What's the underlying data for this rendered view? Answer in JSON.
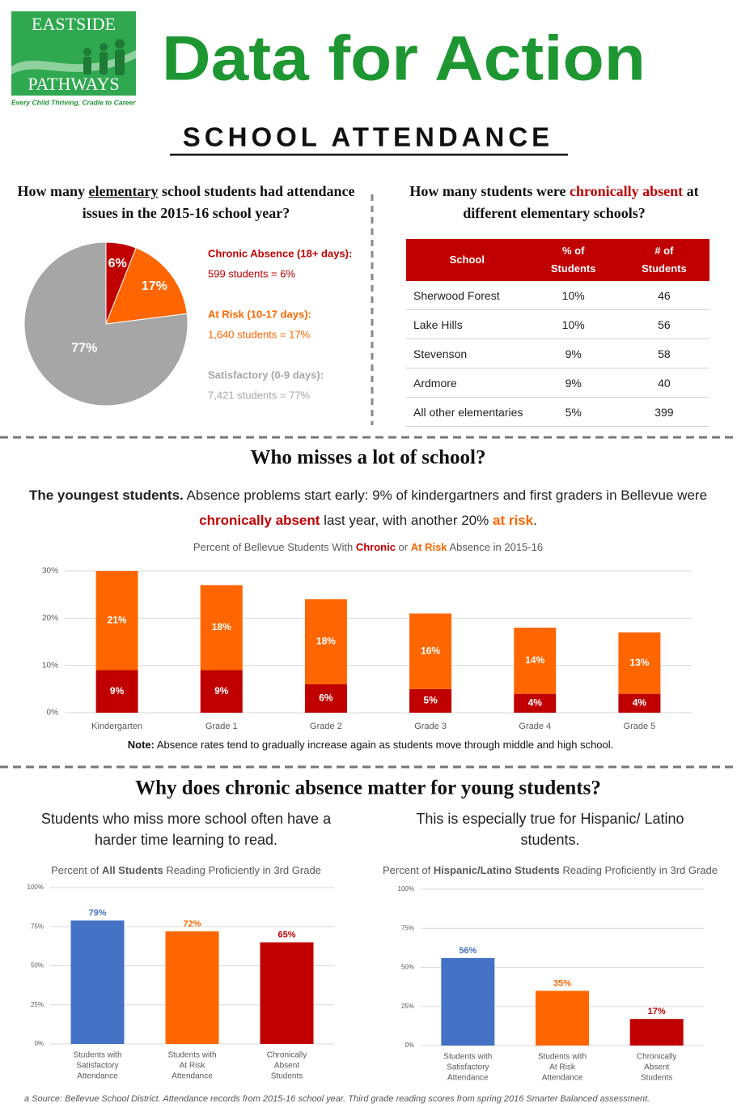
{
  "header": {
    "logo_top": "EASTSIDE",
    "logo_bottom": "PATHWAYS",
    "tagline": "Every Child Thriving, Cradle to Career",
    "title": "Data for Action",
    "subtitle": "SCHOOL ATTENDANCE"
  },
  "section1": {
    "question": [
      "How many ",
      "elementary",
      " school students had attendance issues in the 2015-16 school year?"
    ]
  },
  "table": {
    "question": [
      "How many students were ",
      "chronically absent",
      " at different elementary schools?"
    ],
    "columns": [
      "School",
      "% of Students",
      "# of Students"
    ],
    "rows": [
      [
        "Sherwood Forest",
        "10%",
        "46"
      ],
      [
        "Lake Hills",
        "10%",
        "56"
      ],
      [
        "Stevenson",
        "9%",
        "58"
      ],
      [
        "Ardmore",
        "9%",
        "40"
      ],
      [
        "All other elementaries",
        "5%",
        "399"
      ]
    ]
  },
  "section2": {
    "heading": "Who misses a lot of school?",
    "text": [
      "The youngest students.",
      " Absence problems start early: 9% of kindergartners and first graders in Bellevue were ",
      "chronically absent",
      " last year, with another 20% ",
      "at risk",
      "."
    ],
    "note": [
      "Note:",
      " Absence rates tend to gradually increase again as students move through middle and high school."
    ]
  },
  "section3": {
    "heading": "Why does chronic absence matter for young students?",
    "left_text": "Students who miss more school often have a harder time learning to read.",
    "right_text": "This is especially true for Hispanic/ Latino students."
  },
  "chart_data": [
    {
      "type": "pie",
      "categories": [
        "Chronic Absence (18+ days):",
        "At Risk (10-17 days):",
        "Satisfactory (0-9 days):"
      ],
      "values": [
        6,
        17,
        77
      ],
      "value_labels": [
        "6%",
        "17%",
        "77%"
      ],
      "details": [
        "599 students = 6%",
        "1,640 students = 17%",
        "7,421 students = 77%"
      ],
      "colors": [
        "#c00000",
        "#ff6600",
        "#a6a6a6"
      ]
    },
    {
      "type": "stacked_bar",
      "title": [
        "Percent of Bellevue Students With ",
        "Chronic",
        " or ",
        "At Risk",
        " Absence in 2015-16"
      ],
      "categories": [
        "Kindergarten",
        "Grade 1",
        "Grade 2",
        "Grade 3",
        "Grade 4",
        "Grade 5"
      ],
      "series": [
        {
          "color": "#c00000",
          "values": [
            9,
            9,
            6,
            5,
            4,
            4
          ],
          "value_labels": [
            "9%",
            "9%",
            "6%",
            "5%",
            "4%",
            "4%"
          ]
        },
        {
          "color": "#ff6600",
          "values": [
            21,
            18,
            18,
            16,
            14,
            13
          ],
          "value_labels": [
            "21%",
            "18%",
            "18%",
            "16%",
            "14%",
            "13%"
          ]
        }
      ],
      "ylim": [
        0,
        30
      ],
      "yticks": [
        {
          "value": 0,
          "label": "0%"
        },
        {
          "value": 10,
          "label": "10%"
        },
        {
          "value": 20,
          "label": "20%"
        },
        {
          "value": 30,
          "label": "30%"
        }
      ],
      "grid": true
    },
    {
      "type": "bar",
      "title": [
        "Percent of ",
        "All Students",
        " Reading Proficiently in 3rd Grade"
      ],
      "categories": [
        [
          "Students with",
          "Satisfactory",
          "Attendance"
        ],
        [
          "Students with",
          "At Risk",
          "Attendance"
        ],
        [
          "Chronically",
          "Absent",
          "Students"
        ]
      ],
      "values": [
        79,
        72,
        65
      ],
      "value_labels": [
        "79%",
        "72%",
        "65%"
      ],
      "colors": [
        "#4472c4",
        "#ff6600",
        "#c00000"
      ],
      "ylim": [
        0,
        100
      ],
      "yticks": [
        {
          "value": 0,
          "label": "0%"
        },
        {
          "value": 25,
          "label": "25%"
        },
        {
          "value": 50,
          "label": "50%"
        },
        {
          "value": 75,
          "label": "75%"
        },
        {
          "value": 100,
          "label": "100%"
        }
      ],
      "grid": true
    },
    {
      "type": "bar",
      "title": [
        "Percent of ",
        "Hispanic/Latino Students",
        " Reading Proficiently in 3rd Grade"
      ],
      "categories": [
        [
          "Students with",
          "Satisfactory",
          "Attendance"
        ],
        [
          "Students with",
          "At Risk",
          "Attendance"
        ],
        [
          "Chronically",
          "Absent",
          "Students"
        ]
      ],
      "values": [
        56,
        35,
        17
      ],
      "value_labels": [
        "56%",
        "35%",
        "17%"
      ],
      "colors": [
        "#4472c4",
        "#ff6600",
        "#c00000"
      ],
      "ylim": [
        0,
        100
      ],
      "yticks": [
        {
          "value": 0,
          "label": "0%"
        },
        {
          "value": 25,
          "label": "25%"
        },
        {
          "value": 50,
          "label": "50%"
        },
        {
          "value": 75,
          "label": "75%"
        },
        {
          "value": 100,
          "label": "100%"
        }
      ],
      "grid": true
    }
  ],
  "footer": "a Source: Bellevue School District. Attendance records from 2015-16 school year. Third grade reading scores from spring 2016 Smarter Balanced assessment."
}
